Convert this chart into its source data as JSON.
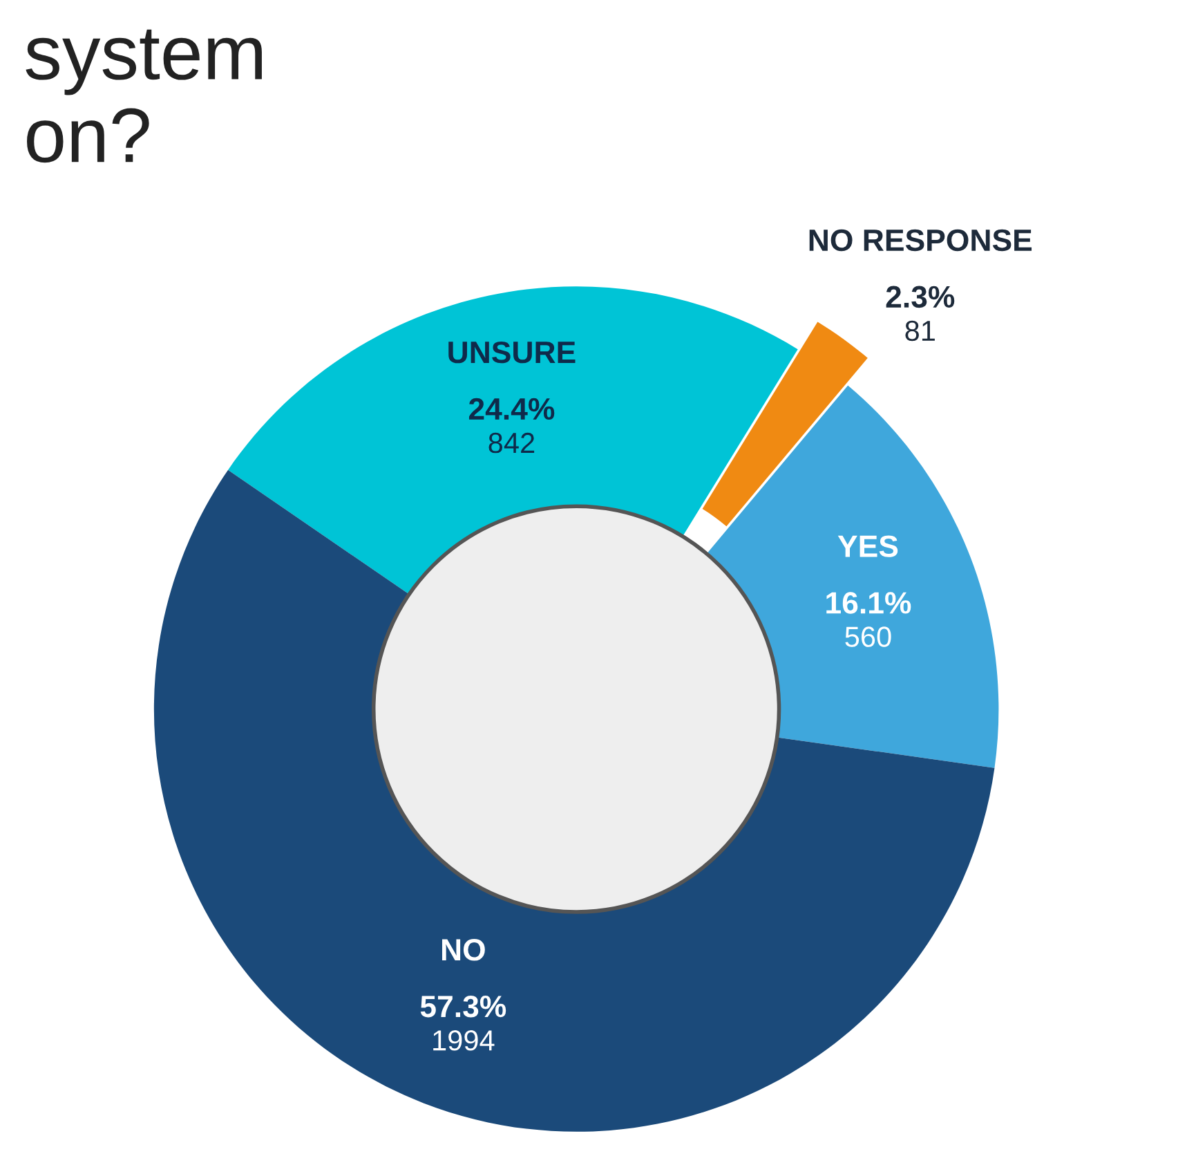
{
  "chart_data": {
    "type": "donut",
    "title": "system\non?",
    "categories": [
      "YES",
      "NO RESPONSE",
      "UNSURE",
      "NO"
    ],
    "values": [
      560,
      81,
      842,
      1994
    ],
    "value_labels": [
      "16.1%\n560",
      "2.3%\n81",
      "24.4%\n842",
      "57.3%\n1994"
    ],
    "colors": [
      "#3fa7dc",
      "#f08a12",
      "#00c4d6",
      "#1b4a7a"
    ],
    "legend": false
  }
}
